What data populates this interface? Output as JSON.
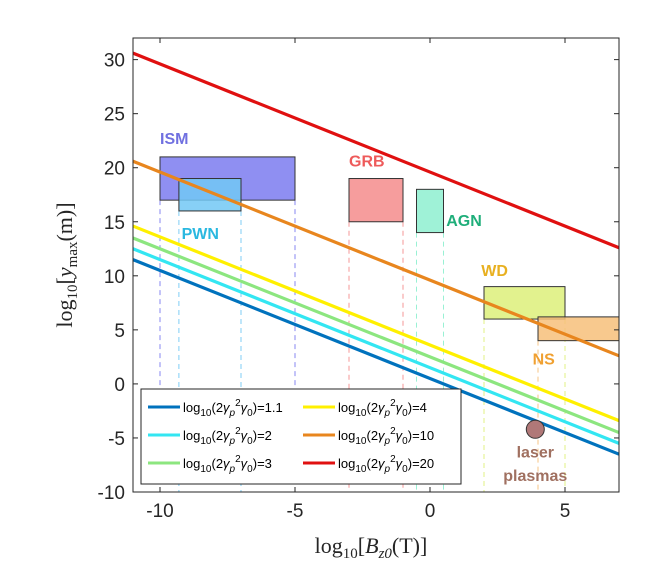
{
  "chart_data": {
    "type": "line",
    "title": "",
    "xlabel": "log10[B_z0(T)]",
    "ylabel": "log10[y_max(m)]",
    "xlim": [
      -11,
      7
    ],
    "ylim": [
      -10,
      32
    ],
    "xticks": [
      -10,
      -5,
      0,
      5
    ],
    "yticks": [
      -10,
      -5,
      0,
      5,
      10,
      15,
      20,
      25,
      30
    ],
    "grid": false,
    "legend_position": "bottom-left",
    "series": [
      {
        "name": "log10(2γp²γ0)=1.1",
        "color": "#0072BD",
        "x": [
          -11,
          7
        ],
        "y": [
          11.5,
          -6.5
        ]
      },
      {
        "name": "log10(2γp²γ0)=2",
        "color": "#33E6F2",
        "x": [
          -11,
          7
        ],
        "y": [
          12.5,
          -5.5
        ]
      },
      {
        "name": "log10(2γp²γ0)=3",
        "color": "#8CE67F",
        "x": [
          -11,
          7
        ],
        "y": [
          13.5,
          -4.5
        ]
      },
      {
        "name": "log10(2γp²γ0)=4",
        "color": "#FFF000",
        "x": [
          -11,
          7
        ],
        "y": [
          14.6,
          -3.4
        ]
      },
      {
        "name": "log10(2γp²γ0)=10",
        "color": "#E8861E",
        "x": [
          -11,
          7
        ],
        "y": [
          20.6,
          2.6
        ]
      },
      {
        "name": "log10(2γp²γ0)=20",
        "color": "#E01010",
        "x": [
          -11,
          7
        ],
        "y": [
          30.6,
          12.6
        ]
      }
    ],
    "regions": [
      {
        "name": "ISM",
        "x": [
          -10,
          -5
        ],
        "y": [
          17,
          21
        ],
        "fill": "#7B7BF0",
        "label_color": "#7070E0"
      },
      {
        "name": "PWN",
        "x": [
          -9.3,
          -7
        ],
        "y": [
          16,
          19
        ],
        "fill": "#72C8F5",
        "label_color": "#2AB8E0"
      },
      {
        "name": "GRB",
        "x": [
          -3,
          -1
        ],
        "y": [
          15,
          19
        ],
        "fill": "#F58C8C",
        "label_color": "#EE5A5A"
      },
      {
        "name": "AGN",
        "x": [
          -0.5,
          0.5
        ],
        "y": [
          14,
          18
        ],
        "fill": "#8EF0D0",
        "label_color": "#1FAE7A"
      },
      {
        "name": "WD",
        "x": [
          2,
          5
        ],
        "y": [
          6,
          9
        ],
        "fill": "#DDF07A",
        "label_color": "#E8B020"
      },
      {
        "name": "NS",
        "x": [
          4,
          7
        ],
        "y": [
          4,
          6.2
        ],
        "fill": "#F7C07A",
        "label_color": "#F0A030"
      }
    ],
    "points": [
      {
        "name": "laser plasmas",
        "x": 3.9,
        "y": -4.2,
        "fill": "#B07878",
        "label_color": "#A07060"
      }
    ],
    "annotations": [
      "ISM",
      "PWN",
      "GRB",
      "AGN",
      "WD",
      "NS",
      "laser plasmas"
    ]
  }
}
